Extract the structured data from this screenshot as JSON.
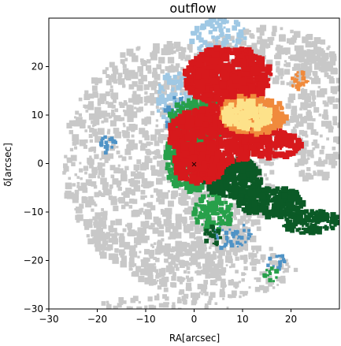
{
  "chart_data": {
    "type": "heatmap",
    "title": "outflow",
    "xlabel": "RA[arcsec]",
    "ylabel": "δ[arcsec]",
    "xlim": [
      -30,
      30
    ],
    "ylim": [
      -30,
      30
    ],
    "xticks": [
      -30,
      -20,
      -10,
      0,
      10,
      20
    ],
    "yticks": [
      -30,
      -20,
      -10,
      0,
      10,
      20
    ],
    "colors": {
      "gray": "#c8c8c8",
      "lightblue": "#9fc8e4",
      "blue": "#4f93c6",
      "green": "#27a04a",
      "darkgreen": "#0b5a26",
      "red": "#d7191c",
      "orange": "#f08a3c",
      "yellow": "#fde28a"
    },
    "regions": [
      {
        "name": "extended-gray-emission",
        "color": "gray",
        "x": [
          -25,
          20
        ],
        "y": [
          -28,
          28
        ]
      },
      {
        "name": "red-lobe-north",
        "color": "red",
        "x": [
          -2,
          15
        ],
        "y": [
          10,
          23
        ]
      },
      {
        "name": "red-lobe-central",
        "color": "red",
        "x": [
          -5,
          18
        ],
        "y": [
          -2,
          12
        ]
      },
      {
        "name": "orange-yellow-core",
        "color": "yellow",
        "x": [
          5,
          20
        ],
        "y": [
          4,
          15
        ]
      },
      {
        "name": "green-ridge",
        "color": "green",
        "x": [
          -5,
          10
        ],
        "y": [
          -8,
          10
        ]
      },
      {
        "name": "dark-green-outflow-tail",
        "color": "darkgreen",
        "x": [
          5,
          30
        ],
        "y": [
          -15,
          -2
        ]
      },
      {
        "name": "blue-patches",
        "color": "blue",
        "x": [
          -20,
          5
        ],
        "y": [
          0,
          28
        ]
      }
    ],
    "markers": [
      {
        "name": "source-marker",
        "x": 0,
        "y": 0,
        "symbol": "x"
      }
    ],
    "grid": false
  }
}
